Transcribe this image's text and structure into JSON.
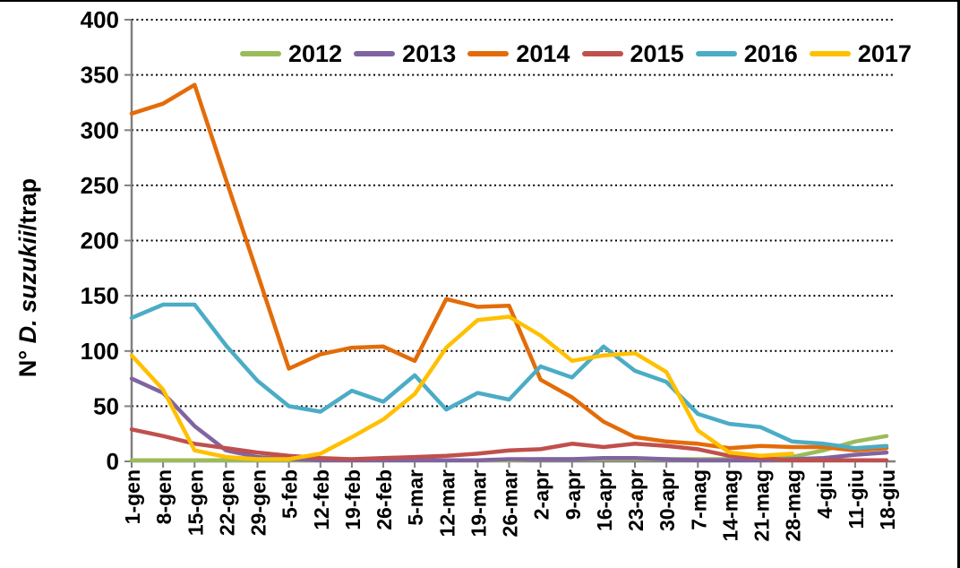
{
  "page": {
    "background": "#FFFFFF",
    "border_top_color": "#000000",
    "border_right_color": "#000000"
  },
  "chart_data": {
    "type": "line",
    "title": "",
    "ylabel": "N° D. suzukii/trap",
    "ylabel_parts": [
      {
        "text": "N° ",
        "italic": false
      },
      {
        "text": "D. suzukii",
        "italic": true
      },
      {
        "text": "/trap",
        "italic": false
      }
    ],
    "ylim": [
      0,
      400
    ],
    "ytick_step": 50,
    "ytick_labels": [
      "0",
      "50",
      "100",
      "150",
      "200",
      "250",
      "300",
      "350",
      "400"
    ],
    "grid": "horizontal-dotted",
    "gridline_color": "#000000",
    "axis_color": "#808080",
    "legend_position": "top",
    "categories": [
      "1-gen",
      "8-gen",
      "15-gen",
      "22-gen",
      "29-gen",
      "5-feb",
      "12-feb",
      "19-feb",
      "26-feb",
      "5-mar",
      "12-mar",
      "19-mar",
      "26-mar",
      "2-apr",
      "9-apr",
      "16-apr",
      "23-apr",
      "30-apr",
      "7-mag",
      "14-mag",
      "21-mag",
      "28-mag",
      "4-giu",
      "11-giu",
      "18-giu"
    ],
    "series": [
      {
        "name": "2012",
        "color": "#9BBB59",
        "values": [
          1,
          1,
          1,
          1,
          1,
          1,
          1,
          1,
          1,
          1,
          1,
          1,
          1,
          2,
          2,
          2,
          2,
          2,
          2,
          2,
          3,
          4,
          10,
          18,
          23
        ]
      },
      {
        "name": "2013",
        "color": "#8064A2",
        "values": [
          75,
          62,
          32,
          10,
          4,
          2,
          1,
          1,
          1,
          1,
          1,
          1,
          2,
          2,
          2,
          3,
          3,
          2,
          1,
          1,
          1,
          2,
          3,
          6,
          8
        ]
      },
      {
        "name": "2014",
        "color": "#E36C09",
        "values": [
          315,
          324,
          341,
          255,
          170,
          84,
          97,
          103,
          104,
          91,
          147,
          140,
          141,
          74,
          58,
          36,
          22,
          18,
          16,
          12,
          14,
          13,
          13,
          10,
          12
        ]
      },
      {
        "name": "2015",
        "color": "#C0504D",
        "values": [
          29,
          23,
          16,
          12,
          8,
          5,
          3,
          2,
          3,
          4,
          5,
          7,
          10,
          11,
          16,
          13,
          16,
          14,
          11,
          5,
          3,
          1,
          1,
          1,
          1
        ]
      },
      {
        "name": "2016",
        "color": "#4BACC6",
        "values": [
          130,
          142,
          142,
          105,
          73,
          50,
          45,
          64,
          54,
          78,
          47,
          62,
          56,
          86,
          76,
          104,
          82,
          72,
          43,
          34,
          31,
          18,
          16,
          12,
          14
        ]
      },
      {
        "name": "2017",
        "color": "#FFC000",
        "values": [
          96,
          65,
          10,
          4,
          2,
          2,
          7,
          22,
          38,
          61,
          103,
          128,
          131,
          114,
          91,
          96,
          98,
          81,
          28,
          8,
          5,
          7,
          null,
          null,
          null
        ]
      }
    ]
  }
}
